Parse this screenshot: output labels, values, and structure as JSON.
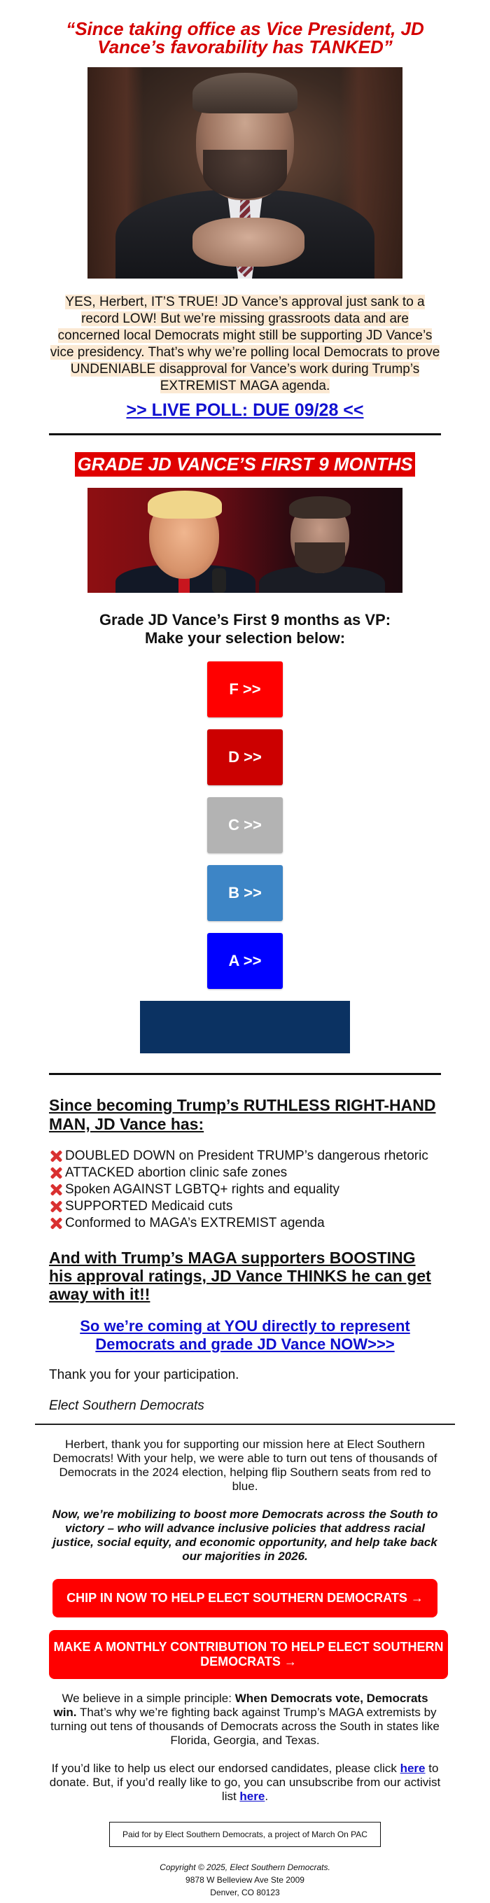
{
  "headline": "“Since taking office as Vice President, JD Vance’s favorability has TANKED”",
  "intro_text": "YES, Herbert, IT’S TRUE! JD Vance’s approval just sank to a record LOW! But we’re missing grassroots data and are concerned local Democrats might still be supporting JD Vance’s vice presidency. That’s why we’re polling local Democrats to prove UNDENIABLE disapproval for Vance’s work during Trump’s EXTREMIST MAGA agenda.",
  "live_poll_link": ">> LIVE POLL: DUE 09/28 <<",
  "grade_title": "GRADE JD VANCE’S FIRST 9 MONTHS",
  "grade_prompt_line1": "Grade JD Vance’s First 9 months as VP:",
  "grade_prompt_line2": "Make your selection below:",
  "grade_buttons": [
    {
      "label": "F >>",
      "color": "#ff0000"
    },
    {
      "label": "D >>",
      "color": "#cc0000"
    },
    {
      "label": "C >>",
      "color": "#b3b3b3"
    },
    {
      "label": "B >>",
      "color": "#3d85c6"
    },
    {
      "label": "A >>",
      "color": "#0000ff"
    }
  ],
  "navy_block_color": "#0b3262",
  "has_heading": "Since becoming Trump’s RUTHLESS RIGHT-HAND MAN, JD Vance has:",
  "has_items": [
    "DOUBLED DOWN on President TRUMP’s dangerous rhetoric",
    "ATTACKED abortion clinic safe zones",
    "Spoken AGAINST LGBTQ+ rights and equality",
    "SUPPORTED Medicaid cuts",
    "Conformed to MAGA’s EXTREMIST agenda"
  ],
  "x_icon": "cross-mark-icon",
  "boost_heading": "And with Trump’s MAGA supporters BOOSTING his approval ratings, JD Vance THINKS he can get away with it!!",
  "cta_link": "So we’re coming at YOU directly to represent Democrats and grade JD Vance NOW>>>",
  "thanks": "Thank you for your participation.",
  "signature": "Elect Southern Democrats",
  "footer": {
    "para1": "Herbert, thank you for supporting our mission here at Elect Southern Democrats! With your help, we were able to turn out tens of thousands of Democrats in the 2024 election, helping flip Southern seats from red to blue.",
    "para2": "Now, we’re mobilizing to boost more Democrats across the South to victory – who will advance inclusive policies that address racial justice, social equity, and economic opportunity, and help take back our majorities in 2026.",
    "donate_button_1": "CHIP IN NOW TO HELP ELECT SOUTHERN DEMOCRATS →",
    "donate_button_2": "MAKE A MONTHLY CONTRIBUTION TO HELP ELECT SOUTHERN DEMOCRATS →",
    "principle_prefix": "We believe in a simple principle: ",
    "principle_bold": "When Democrats vote, Democrats win.",
    "principle_rest": " That’s why we’re fighting back against Trump’s MAGA extremists by turning out tens of thousands of Democrats across the South in states like Florida, Georgia, and Texas.",
    "donate_text_1": "If you’d like to help us elect our endorsed candidates, please click ",
    "donate_link": "here",
    "donate_text_2": " to donate. But, if you’d really like to go, you can unsubscribe from our activist list ",
    "unsubscribe_link": "here",
    "donate_text_3": ".",
    "paid_for": "Paid for by Elect Southern Democrats, a project of March On PAC",
    "copyright": "Copyright © 2025, Elect Southern Democrats.",
    "address1": "9878 W Belleview Ave Ste 2009",
    "address2": "Denver, CO 80123"
  }
}
